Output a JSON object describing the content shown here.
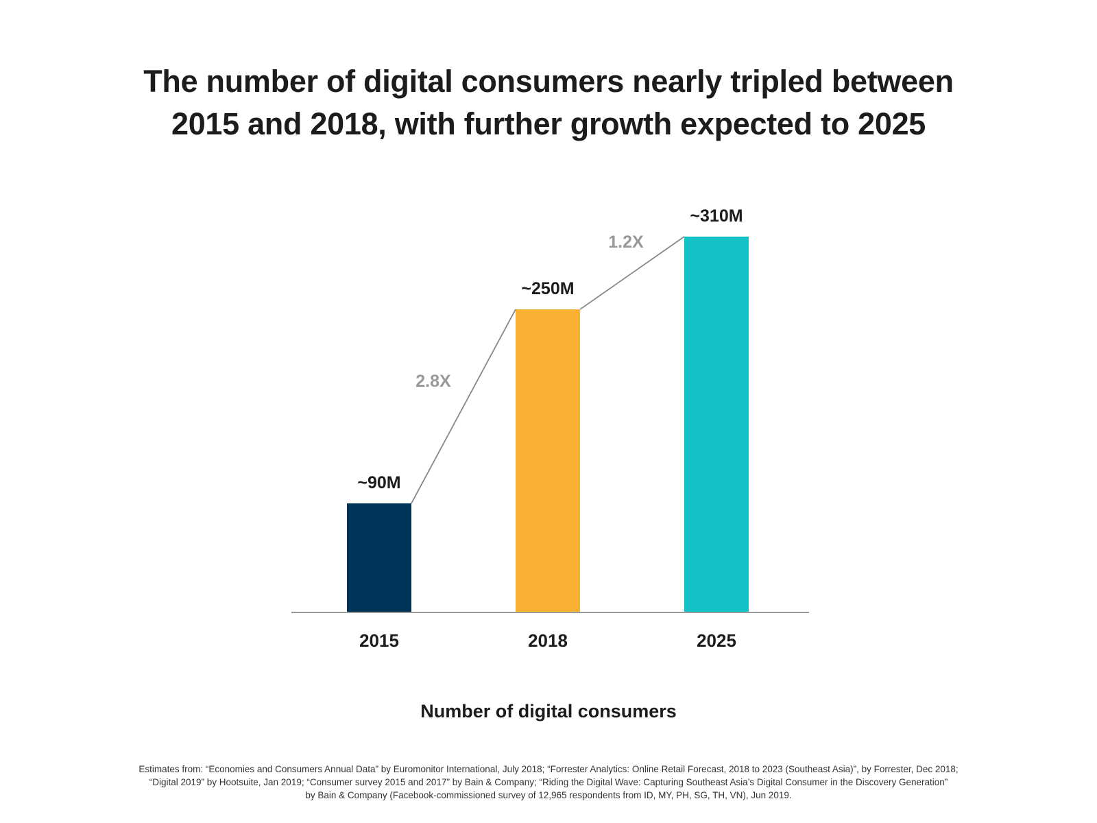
{
  "title": {
    "line1": "The number of digital consumers nearly tripled between",
    "line2": "2015 and 2018, with further growth expected to 2025"
  },
  "chart_data": {
    "type": "bar",
    "title": "The number of digital consumers nearly tripled between 2015 and 2018, with further growth expected to 2025",
    "xlabel": "Number of digital consumers",
    "ylabel": "",
    "categories": [
      "2015",
      "2018",
      "2025"
    ],
    "values": [
      90,
      250,
      310
    ],
    "value_labels": [
      "~90M",
      "~250M",
      "~310M"
    ],
    "unit": "M",
    "ylim": [
      0,
      310
    ],
    "colors": [
      "#003459",
      "#F8B133",
      "#13C2C6"
    ],
    "growth_annotations": [
      {
        "from": "2015",
        "to": "2018",
        "label": "2.8X"
      },
      {
        "from": "2018",
        "to": "2025",
        "label": "1.2X"
      }
    ],
    "grid": false
  },
  "subtitle": "Number of digital consumers",
  "source": {
    "line1": "Estimates from: “Economies and Consumers Annual Data” by Euromonitor International, July 2018; “Forrester Analytics: Online Retail Forecast, 2018 to 2023 (Southeast Asia)”, by Forrester, Dec 2018;",
    "line2": "“Digital 2019” by Hootsuite, Jan 2019; “Consumer survey 2015 and 2017” by Bain & Company; “Riding the Digital Wave: Capturing Southeast Asia’s Digital Consumer in the Discovery Generation”",
    "line3": "by Bain & Company (Facebook-commissioned survey of 12,965 respondents from ID, MY, PH, SG, TH, VN), Jun 2019."
  },
  "colors": {
    "text": "#1c1c1c",
    "annotation": "#999999",
    "connector": "#888888",
    "axis": "#999999"
  }
}
